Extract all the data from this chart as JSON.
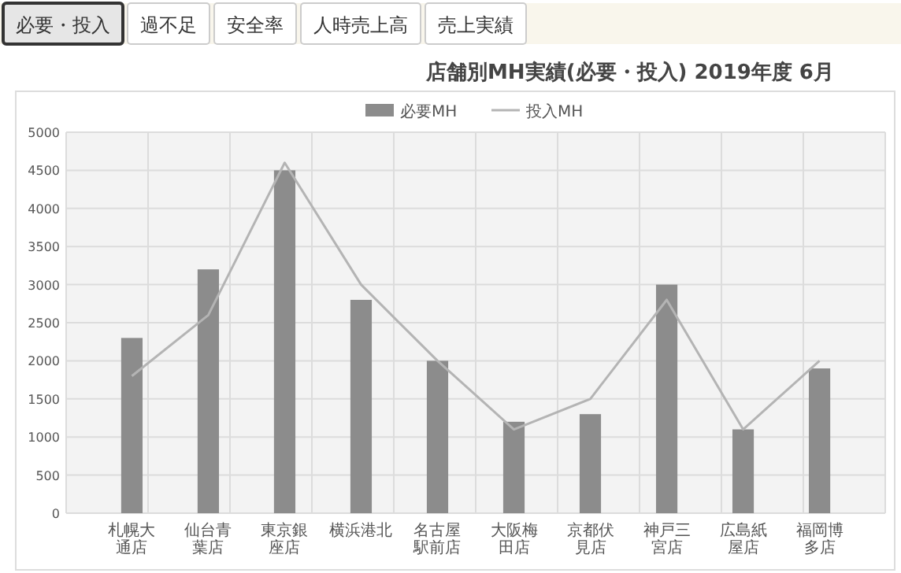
{
  "chart_data": {
    "type": "bar",
    "title": "店舗別MH実績(必要・投入) 2019年度 6月",
    "annotations": [
      "必要・投入",
      "過不足",
      "安全率",
      "人時売上高",
      "売上実績"
    ],
    "categories": [
      "札幌大通店",
      "仙台青葉店",
      "東京銀座店",
      "横浜港北",
      "名古屋駅前店",
      "大阪梅田店",
      "京都伏見店",
      "神戸三宮店",
      "広島紙屋店",
      "福岡博多店"
    ],
    "series": [
      {
        "name": "必要MH",
        "color": "#8c8c8c",
        "values": [
          2300,
          3200,
          4500,
          2800,
          2000,
          1200,
          1300,
          3000,
          1100,
          1900
        ]
      },
      {
        "name": "投入MH",
        "type": "line",
        "color": "#b4b4b4",
        "values": [
          1800,
          2600,
          4600,
          3000,
          2000,
          1100,
          1500,
          2800,
          1100,
          2000
        ]
      }
    ],
    "ylim": [
      0,
      5000
    ],
    "yticks": [
      0,
      500,
      1000,
      1500,
      2000,
      2500,
      3000,
      3500,
      4000,
      4500,
      5000
    ],
    "grid": true,
    "legend": "top",
    "line_style": "solid",
    "marker": "none"
  }
}
